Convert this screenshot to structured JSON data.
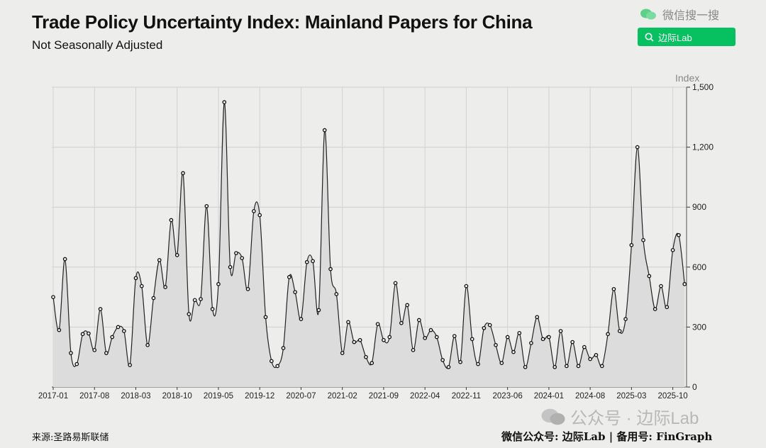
{
  "header": {
    "title": "Trade Policy Uncertainty Index: Mainland Papers for China",
    "subtitle": "Not Seasonally Adjusted"
  },
  "wechat": {
    "search_label": "微信搜一搜",
    "search_button": "边际Lab",
    "icon": "wechat-icon",
    "accent": "#07c160"
  },
  "footer": {
    "source": "来源:圣路易斯联储",
    "right": "微信公众号: 边际Lab  |  备用号: FinGraph",
    "watermark": "公众号 · 边际Lab"
  },
  "chart_data": {
    "type": "area",
    "title": "Trade Policy Uncertainty Index: Mainland Papers for China",
    "subtitle": "Not Seasonally Adjusted",
    "ylabel": "Index",
    "ylim": [
      0,
      1500
    ],
    "yticks": [
      "0",
      "300",
      "600",
      "900",
      "1,200",
      "1,500"
    ],
    "xticks": [
      "2017-01",
      "2017-08",
      "2018-03",
      "2018-10",
      "2019-05",
      "2019-12",
      "2020-07",
      "2021-02",
      "2021-09",
      "2022-04",
      "2022-11",
      "2023-06",
      "2024-01",
      "2024-08",
      "2025-03",
      "2025-10"
    ],
    "x_start": "2017-01",
    "x_end": "2025-12",
    "frequency": "monthly",
    "grid": true,
    "line_color": "#222222",
    "fill_color": "#dcdcdc",
    "values": [
      450,
      285,
      640,
      170,
      115,
      265,
      268,
      185,
      390,
      170,
      250,
      300,
      280,
      110,
      545,
      505,
      210,
      445,
      635,
      500,
      835,
      660,
      1070,
      365,
      435,
      440,
      905,
      390,
      515,
      1425,
      600,
      670,
      645,
      490,
      880,
      860,
      350,
      130,
      105,
      195,
      550,
      475,
      340,
      625,
      630,
      385,
      1285,
      590,
      465,
      170,
      325,
      225,
      235,
      150,
      120,
      315,
      235,
      250,
      520,
      320,
      410,
      185,
      335,
      245,
      285,
      250,
      135,
      100,
      255,
      125,
      505,
      240,
      115,
      295,
      310,
      210,
      120,
      250,
      175,
      270,
      100,
      220,
      350,
      240,
      250,
      100,
      280,
      105,
      225,
      105,
      200,
      140,
      160,
      105,
      265,
      490,
      280,
      340,
      710,
      1200,
      735,
      555,
      390,
      505,
      400,
      685,
      760,
      515
    ]
  }
}
